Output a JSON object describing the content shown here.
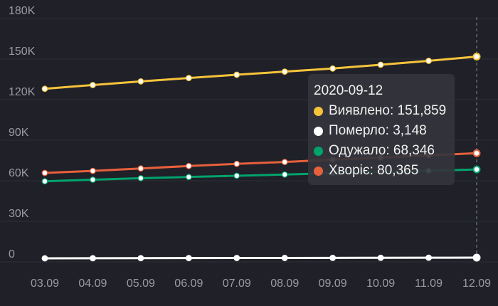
{
  "chart_data": {
    "type": "line",
    "title": "",
    "xlabel": "",
    "ylabel": "",
    "categories": [
      "03.09",
      "04.09",
      "05.09",
      "06.09",
      "07.09",
      "08.09",
      "09.09",
      "10.09",
      "11.09",
      "12.09"
    ],
    "ylim": [
      0,
      180000
    ],
    "yticks": [
      0,
      30000,
      60000,
      90000,
      120000,
      150000,
      180000
    ],
    "ytick_labels": [
      "0",
      "30K",
      "60K",
      "90K",
      "120K",
      "150K",
      "180K"
    ],
    "grid": true,
    "series": [
      {
        "name": "Виявлено",
        "color": "#f6c33b",
        "values": [
          128000,
          130800,
          133500,
          136000,
          138400,
          140700,
          143000,
          145800,
          148700,
          151859
        ]
      },
      {
        "name": "Померло",
        "color": "#ffffff",
        "values": [
          2650,
          2700,
          2760,
          2810,
          2870,
          2920,
          2980,
          3030,
          3090,
          3148
        ]
      },
      {
        "name": "Одужало",
        "color": "#00a36c",
        "values": [
          59600,
          60800,
          61900,
          62800,
          63700,
          64600,
          65600,
          66600,
          67400,
          68346
        ]
      },
      {
        "name": "Хворіє",
        "color": "#e8603c",
        "values": [
          65800,
          67300,
          69100,
          70900,
          72500,
          73900,
          75600,
          77100,
          78800,
          80365
        ]
      }
    ],
    "tooltip": {
      "date": "2020-09-12",
      "items": [
        {
          "name": "Виявлено",
          "value": "151,859",
          "color": "#f6c33b"
        },
        {
          "name": "Померло",
          "value": "3,148",
          "color": "#ffffff"
        },
        {
          "name": "Одужало",
          "value": "68,346",
          "color": "#00a36c"
        },
        {
          "name": "Хворіє",
          "value": "80,365",
          "color": "#e8603c"
        }
      ]
    }
  }
}
